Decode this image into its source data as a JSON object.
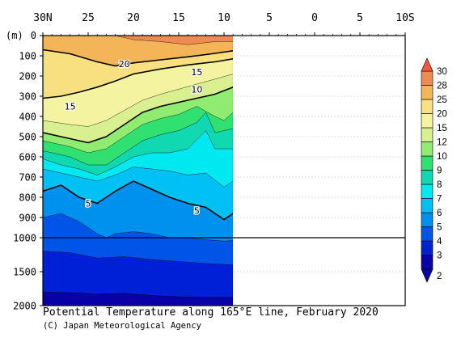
{
  "chart_data": {
    "type": "contour",
    "title": "Potential Temperature along 165°E line, February 2020",
    "credit": "(C) Japan Meteorological Agency",
    "y_unit_label": "(m)",
    "x_ticks": [
      "30N",
      "25",
      "20",
      "15",
      "10",
      "5",
      "0",
      "5",
      "10S"
    ],
    "y_ticks_upper": [
      "0",
      "100",
      "200",
      "300",
      "400",
      "500",
      "600",
      "700",
      "800",
      "900",
      "1000"
    ],
    "y_ticks_lower": [
      "1500",
      "2000"
    ],
    "xlim": [
      30,
      -10
    ],
    "ylim": [
      0,
      2000
    ],
    "grid": true,
    "data_extent_lat": [
      30,
      9
    ],
    "colorbar": {
      "levels": [
        "2",
        "3",
        "4",
        "5",
        "6",
        "7",
        "8",
        "9",
        "10",
        "12",
        "15",
        "20",
        "25",
        "28",
        "30"
      ],
      "colors": [
        "#0a00a8",
        "#0020d8",
        "#0055e8",
        "#0090ee",
        "#00c0f4",
        "#00e8f0",
        "#10d8b0",
        "#30e070",
        "#90ec70",
        "#d8f090",
        "#f4f4a0",
        "#f8e080",
        "#f4b458",
        "#f08a50",
        "#f05a40"
      ]
    },
    "isotherms": [
      {
        "value": 20,
        "depth_by_lat": [
          [
            30,
            70
          ],
          [
            27,
            90
          ],
          [
            24,
            130
          ],
          [
            22,
            150
          ],
          [
            20,
            135
          ],
          [
            17,
            120
          ],
          [
            14,
            105
          ],
          [
            11,
            88
          ],
          [
            9,
            75
          ]
        ]
      },
      {
        "value": 15,
        "depth_by_lat": [
          [
            30,
            310
          ],
          [
            28,
            300
          ],
          [
            26,
            280
          ],
          [
            24,
            255
          ],
          [
            22,
            225
          ],
          [
            20,
            190
          ],
          [
            17,
            165
          ],
          [
            14,
            145
          ],
          [
            11,
            130
          ],
          [
            9,
            115
          ]
        ]
      },
      {
        "value": 10,
        "depth_by_lat": [
          [
            30,
            480
          ],
          [
            27,
            510
          ],
          [
            25,
            530
          ],
          [
            23,
            500
          ],
          [
            21,
            440
          ],
          [
            19,
            380
          ],
          [
            17,
            350
          ],
          [
            15,
            330
          ],
          [
            13,
            310
          ],
          [
            11,
            290
          ],
          [
            9,
            255
          ]
        ]
      },
      {
        "value": 5,
        "depth_by_lat": [
          [
            30,
            770
          ],
          [
            28,
            740
          ],
          [
            26,
            800
          ],
          [
            24,
            830
          ],
          [
            22,
            770
          ],
          [
            20,
            720
          ],
          [
            18,
            760
          ],
          [
            16,
            800
          ],
          [
            14,
            830
          ],
          [
            12,
            850
          ],
          [
            10,
            910
          ],
          [
            9,
            880
          ]
        ]
      }
    ],
    "isotherm_labels": [
      {
        "text": "20",
        "lat": 21,
        "depth": 140
      },
      {
        "text": "15",
        "lat": 13,
        "depth": 180
      },
      {
        "text": "10",
        "lat": 13,
        "depth": 265
      },
      {
        "text": "15",
        "lat": 27,
        "depth": 350
      },
      {
        "text": "5",
        "lat": 25,
        "depth": 830
      },
      {
        "text": "5",
        "lat": 13,
        "depth": 865
      }
    ],
    "filled_bands": [
      {
        "value": 30,
        "depth_by_lat": [
          [
            30,
            0
          ],
          [
            9,
            0
          ]
        ]
      },
      {
        "value": 28,
        "depth_by_lat": [
          [
            30,
            0
          ],
          [
            20,
            0
          ],
          [
            17,
            0
          ],
          [
            13,
            0
          ],
          [
            11,
            0
          ],
          [
            9,
            0
          ]
        ]
      },
      {
        "value": 25,
        "depth_by_lat": [
          [
            30,
            0
          ],
          [
            25,
            0
          ],
          [
            22,
            0
          ],
          [
            20,
            20
          ],
          [
            17,
            30
          ],
          [
            14,
            45
          ],
          [
            11,
            30
          ],
          [
            9,
            30
          ]
        ]
      },
      {
        "value": 20,
        "depth_by_lat": [
          [
            30,
            70
          ],
          [
            27,
            90
          ],
          [
            24,
            130
          ],
          [
            22,
            150
          ],
          [
            20,
            135
          ],
          [
            17,
            120
          ],
          [
            14,
            105
          ],
          [
            11,
            88
          ],
          [
            9,
            75
          ]
        ]
      },
      {
        "value": 15,
        "depth_by_lat": [
          [
            30,
            310
          ],
          [
            28,
            300
          ],
          [
            26,
            280
          ],
          [
            24,
            255
          ],
          [
            22,
            225
          ],
          [
            20,
            190
          ],
          [
            17,
            165
          ],
          [
            14,
            145
          ],
          [
            11,
            130
          ],
          [
            9,
            115
          ]
        ]
      },
      {
        "value": 12,
        "depth_by_lat": [
          [
            30,
            420
          ],
          [
            27,
            440
          ],
          [
            25,
            450
          ],
          [
            23,
            420
          ],
          [
            21,
            370
          ],
          [
            19,
            320
          ],
          [
            17,
            290
          ],
          [
            15,
            265
          ],
          [
            13,
            240
          ],
          [
            11,
            215
          ],
          [
            9,
            190
          ]
        ]
      },
      {
        "value": 10,
        "depth_by_lat": [
          [
            30,
            480
          ],
          [
            27,
            510
          ],
          [
            25,
            530
          ],
          [
            23,
            500
          ],
          [
            21,
            440
          ],
          [
            19,
            380
          ],
          [
            17,
            350
          ],
          [
            15,
            330
          ],
          [
            13,
            310
          ],
          [
            11,
            290
          ],
          [
            9,
            255
          ]
        ]
      },
      {
        "value": 9,
        "depth_by_lat": [
          [
            30,
            520
          ],
          [
            27,
            550
          ],
          [
            25,
            580
          ],
          [
            23,
            560
          ],
          [
            21,
            500
          ],
          [
            19,
            440
          ],
          [
            17,
            410
          ],
          [
            15,
            390
          ],
          [
            13,
            350
          ],
          [
            11,
            400
          ],
          [
            10,
            420
          ],
          [
            9,
            380
          ]
        ]
      },
      {
        "value": 8,
        "depth_by_lat": [
          [
            30,
            570
          ],
          [
            27,
            600
          ],
          [
            25,
            640
          ],
          [
            23,
            640
          ],
          [
            21,
            580
          ],
          [
            19,
            520
          ],
          [
            17,
            490
          ],
          [
            15,
            470
          ],
          [
            13,
            430
          ],
          [
            12,
            380
          ],
          [
            11,
            480
          ],
          [
            9,
            460
          ]
        ]
      },
      {
        "value": 7,
        "depth_by_lat": [
          [
            30,
            610
          ],
          [
            28,
            640
          ],
          [
            26,
            660
          ],
          [
            24,
            690
          ],
          [
            22,
            650
          ],
          [
            20,
            600
          ],
          [
            18,
            580
          ],
          [
            16,
            580
          ],
          [
            14,
            560
          ],
          [
            12,
            470
          ],
          [
            11,
            560
          ],
          [
            9,
            560
          ]
        ]
      },
      {
        "value": 6,
        "depth_by_lat": [
          [
            30,
            660
          ],
          [
            28,
            680
          ],
          [
            26,
            700
          ],
          [
            24,
            720
          ],
          [
            22,
            690
          ],
          [
            20,
            650
          ],
          [
            18,
            660
          ],
          [
            16,
            670
          ],
          [
            14,
            690
          ],
          [
            12,
            680
          ],
          [
            10,
            750
          ],
          [
            9,
            720
          ]
        ]
      },
      {
        "value": 5,
        "depth_by_lat": [
          [
            30,
            770
          ],
          [
            28,
            740
          ],
          [
            26,
            800
          ],
          [
            24,
            830
          ],
          [
            22,
            770
          ],
          [
            20,
            720
          ],
          [
            18,
            760
          ],
          [
            16,
            800
          ],
          [
            14,
            830
          ],
          [
            12,
            850
          ],
          [
            10,
            910
          ],
          [
            9,
            880
          ]
        ]
      },
      {
        "value": 4,
        "depth_by_lat": [
          [
            30,
            900
          ],
          [
            28,
            880
          ],
          [
            26,
            920
          ],
          [
            24,
            980
          ],
          [
            23,
            1000
          ],
          [
            22,
            980
          ],
          [
            20,
            970
          ],
          [
            18,
            980
          ],
          [
            16,
            1000
          ],
          [
            14,
            1000
          ],
          [
            12,
            1030
          ],
          [
            10,
            1050
          ],
          [
            9,
            1040
          ]
        ]
      },
      {
        "value": 3,
        "depth_by_lat": [
          [
            30,
            1200
          ],
          [
            27,
            1220
          ],
          [
            24,
            1300
          ],
          [
            21,
            1280
          ],
          [
            18,
            1320
          ],
          [
            15,
            1350
          ],
          [
            12,
            1380
          ],
          [
            9,
            1400
          ]
        ]
      },
      {
        "value": 2,
        "depth_by_lat": [
          [
            30,
            1800
          ],
          [
            27,
            1810
          ],
          [
            24,
            1830
          ],
          [
            21,
            1820
          ],
          [
            18,
            1850
          ],
          [
            15,
            1870
          ],
          [
            12,
            1880
          ],
          [
            9,
            1880
          ]
        ]
      }
    ]
  }
}
